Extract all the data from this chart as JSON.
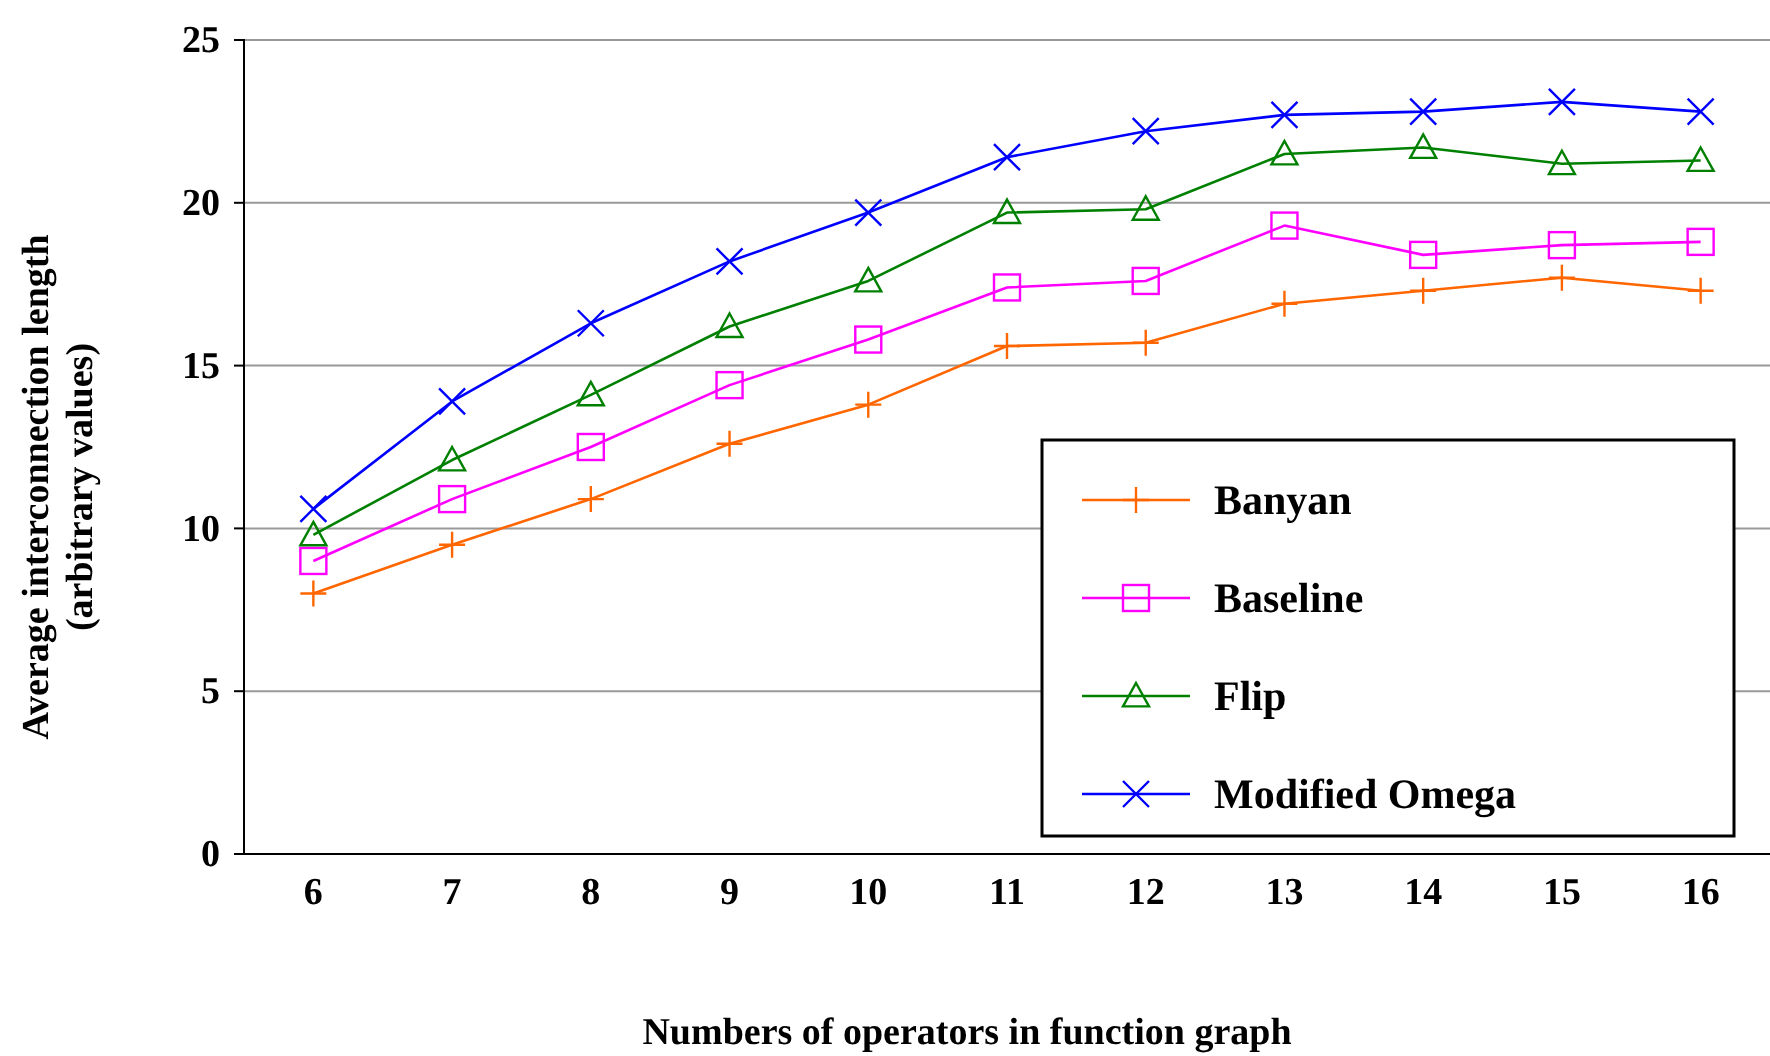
{
  "chart_data": {
    "type": "line",
    "xlabel": "Numbers of operators in function graph",
    "ylabel": "Average interconnection length\n(arbitrary values)",
    "categories": [
      "6",
      "7",
      "8",
      "9",
      "10",
      "11",
      "12",
      "13",
      "14",
      "15",
      "16"
    ],
    "ylim": [
      0,
      25
    ],
    "yticks": [
      0,
      5,
      10,
      15,
      20,
      25
    ],
    "grid": "y",
    "legend": "bottom right",
    "line_style": "solid",
    "series": [
      {
        "name": "Banyan",
        "color": "#ff6600",
        "marker": "plus",
        "values": [
          8.0,
          9.5,
          10.9,
          12.6,
          13.8,
          15.6,
          15.7,
          16.9,
          17.3,
          17.7,
          17.3
        ]
      },
      {
        "name": "Baseline",
        "color": "#ff00ff",
        "marker": "square",
        "values": [
          9.0,
          10.9,
          12.5,
          14.4,
          15.8,
          17.4,
          17.6,
          19.3,
          18.4,
          18.7,
          18.8
        ]
      },
      {
        "name": "Flip",
        "color": "#008000",
        "marker": "triangle",
        "values": [
          9.8,
          12.1,
          14.1,
          16.2,
          17.6,
          19.7,
          19.8,
          21.5,
          21.7,
          21.2,
          21.3
        ]
      },
      {
        "name": "Modified Omega",
        "color": "#0000ff",
        "marker": "cross",
        "values": [
          10.6,
          13.9,
          16.3,
          18.2,
          19.7,
          21.4,
          22.2,
          22.7,
          22.8,
          23.1,
          22.8
        ]
      }
    ]
  }
}
